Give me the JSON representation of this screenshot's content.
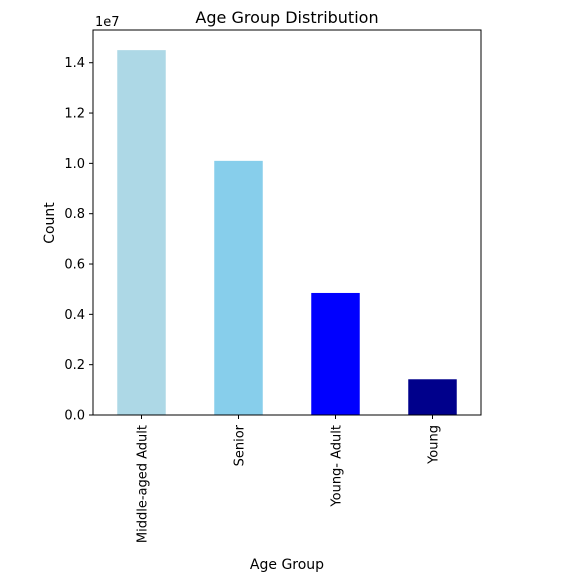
{
  "chart_data": {
    "type": "bar",
    "title": "Age Group Distribution",
    "xlabel": "Age Group",
    "ylabel": "Count",
    "y_offset_text": "1e7",
    "categories": [
      "Middle-aged Adult",
      "Senior",
      "Young- Adult",
      "Young"
    ],
    "values": [
      14500000,
      10100000,
      4850000,
      1420000
    ],
    "colors": [
      "#add8e6",
      "#87ceeb",
      "#0000ff",
      "#00008b"
    ],
    "ylim": [
      0,
      15300000
    ],
    "yticks": [
      0,
      2000000,
      4000000,
      6000000,
      8000000,
      10000000,
      12000000,
      14000000
    ],
    "ytick_labels": [
      "0.0",
      "0.2",
      "0.4",
      "0.6",
      "0.8",
      "1.0",
      "1.2",
      "1.4"
    ],
    "grid": false,
    "legend": "none"
  }
}
